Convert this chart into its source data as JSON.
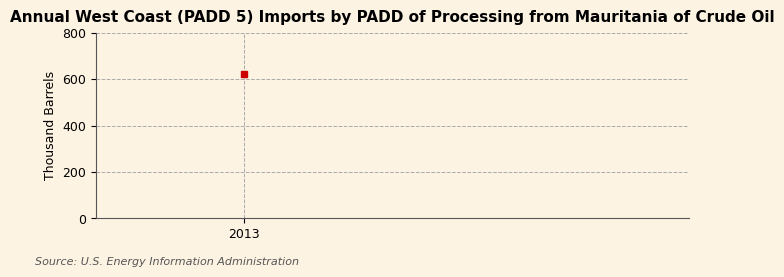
{
  "title": "Annual West Coast (PADD 5) Imports by PADD of Processing from Mauritania of Crude Oil",
  "ylabel": "Thousand Barrels",
  "source": "Source: U.S. Energy Information Administration",
  "x_data": [
    2013
  ],
  "y_data": [
    621
  ],
  "marker": "s",
  "marker_color": "#cc0000",
  "marker_size": 5,
  "ylim": [
    0,
    800
  ],
  "yticks": [
    0,
    200,
    400,
    600,
    800
  ],
  "xlim": [
    2012.5,
    2014.5
  ],
  "xticks": [
    2013
  ],
  "background_color": "#fdf3e3",
  "plot_bg_color": "#fdf3e3",
  "grid_color": "#aaaaaa",
  "grid_linestyle": "--",
  "grid_linewidth": 0.7,
  "title_fontsize": 11,
  "ylabel_fontsize": 9,
  "tick_fontsize": 9,
  "source_fontsize": 8,
  "spine_color": "#555555"
}
